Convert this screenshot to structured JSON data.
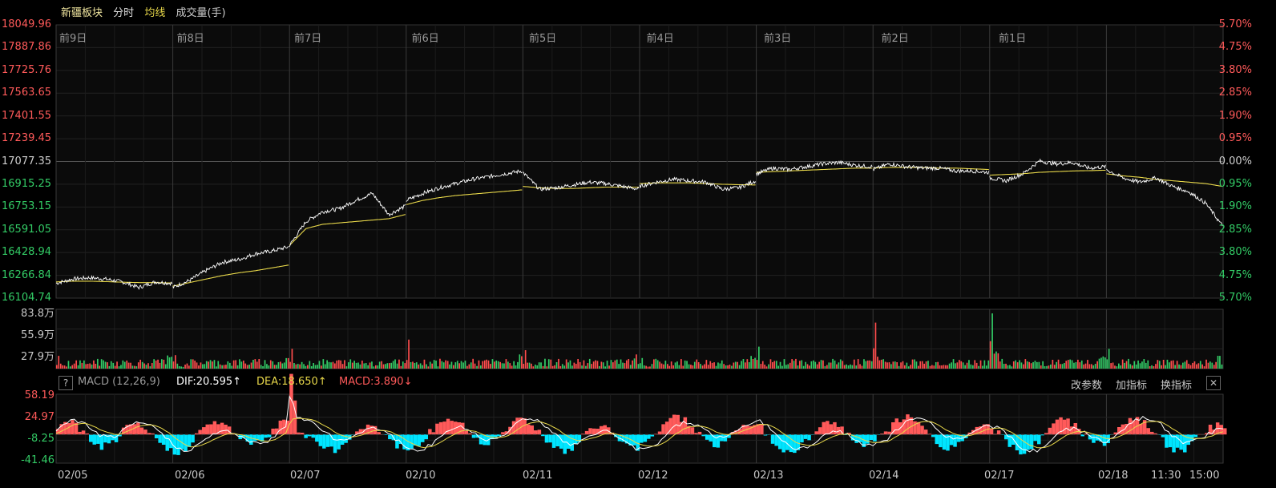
{
  "header": {
    "title": "新疆板块",
    "tab_minute": "分时",
    "tab_avg": "均线",
    "tab_volume": "成交量(手)"
  },
  "colors": {
    "up": "#ff4d4d",
    "down": "#33cc66",
    "avg": "#e8d84a",
    "price": "#ffffff",
    "cyan": "#00e5ff",
    "grid": "#2a2a2a"
  },
  "price_axis": {
    "labels": [
      "18049.96",
      "17887.86",
      "17725.76",
      "17563.65",
      "17401.55",
      "17239.45",
      "17077.35",
      "16915.25",
      "16753.15",
      "16591.05",
      "16428.94",
      "16266.84",
      "16104.74"
    ],
    "pct_labels": [
      "5.70%",
      "4.75%",
      "3.80%",
      "2.85%",
      "1.90%",
      "0.95%",
      "0.00%",
      "0.95%",
      "1.90%",
      "2.85%",
      "3.80%",
      "4.75%",
      "5.70%"
    ]
  },
  "day_labels": [
    "前9日",
    "前8日",
    "前7日",
    "前6日",
    "前5日",
    "前4日",
    "前3日",
    "前2日",
    "前1日"
  ],
  "volume_axis": {
    "labels": [
      "83.8万",
      "55.9万",
      "27.9万"
    ]
  },
  "macd": {
    "title": "MACD (12,26,9)",
    "dif": "DIF:20.595↑",
    "dea": "DEA:18.650↑",
    "macd": "MACD:3.890↓",
    "axis_labels": [
      "58.19",
      "24.97",
      "-8.25",
      "-41.46"
    ],
    "buttons": {
      "params": "改参数",
      "add": "加指标",
      "switch": "换指标",
      "close": "✕",
      "help": "?"
    }
  },
  "date_labels": [
    "02/05",
    "02/06",
    "02/07",
    "02/10",
    "02/11",
    "02/12",
    "02/13",
    "02/14",
    "02/17",
    "02/18",
    "11:30",
    "15:00"
  ],
  "chart_data": {
    "type": "line",
    "title": "新疆板块",
    "ylim": [
      16104.74,
      18049.96
    ],
    "reference": 17077.35,
    "x": [
      "02/05",
      "02/06",
      "02/07",
      "02/10",
      "02/11",
      "02/12",
      "02/13",
      "02/14",
      "02/17",
      "02/18"
    ],
    "series": [
      {
        "name": "分时",
        "day_paths": [
          [
            16210,
            16240,
            16250,
            16240,
            16220,
            16180,
            16220,
            16210
          ],
          [
            16180,
            16230,
            16300,
            16360,
            16380,
            16420,
            16440,
            16470
          ],
          [
            16480,
            16650,
            16720,
            16740,
            16800,
            16850,
            16700,
            16760
          ],
          [
            16800,
            16850,
            16890,
            16920,
            16950,
            16970,
            16990,
            17010
          ],
          [
            17000,
            16880,
            16890,
            16910,
            16930,
            16920,
            16900,
            16880
          ],
          [
            16900,
            16930,
            16950,
            16940,
            16930,
            16880,
            16890,
            16940
          ],
          [
            16990,
            17030,
            17020,
            17040,
            17060,
            17070,
            17050,
            17040
          ],
          [
            17020,
            17060,
            17040,
            17030,
            17030,
            17010,
            17010,
            17000
          ],
          [
            16960,
            16940,
            16990,
            17080,
            17060,
            17070,
            17030,
            17040
          ],
          [
            17020,
            16960,
            16930,
            16960,
            16900,
            16860,
            16780,
            16620
          ]
        ]
      },
      {
        "name": "均线",
        "day_paths": [
          [
            16220,
            16225,
            16225,
            16222,
            16218,
            16215,
            16215,
            16212
          ],
          [
            16190,
            16215,
            16240,
            16265,
            16285,
            16300,
            16320,
            16340
          ],
          [
            16480,
            16600,
            16630,
            16640,
            16650,
            16660,
            16670,
            16700
          ],
          [
            16770,
            16800,
            16820,
            16835,
            16845,
            16855,
            16865,
            16875
          ],
          [
            16900,
            16890,
            16885,
            16885,
            16890,
            16895,
            16895,
            16895
          ],
          [
            16920,
            16925,
            16925,
            16925,
            16920,
            16915,
            16912,
            16910
          ],
          [
            17000,
            17005,
            17010,
            17015,
            17020,
            17025,
            17030,
            17030
          ],
          [
            17030,
            17035,
            17035,
            17035,
            17030,
            17030,
            17025,
            17020
          ],
          [
            16980,
            16985,
            16990,
            17000,
            17005,
            17010,
            17012,
            17015
          ],
          [
            16990,
            16975,
            16965,
            16950,
            16940,
            16930,
            16920,
            16900
          ]
        ]
      }
    ],
    "volume": {
      "ylim": [
        0,
        838000
      ],
      "day_spikes": [
        180000,
        190000,
        280000,
        410000,
        260000,
        150000,
        310000,
        650000,
        780000,
        280000
      ]
    },
    "macd": {
      "ylim": [
        -41.46,
        58.19
      ]
    }
  }
}
